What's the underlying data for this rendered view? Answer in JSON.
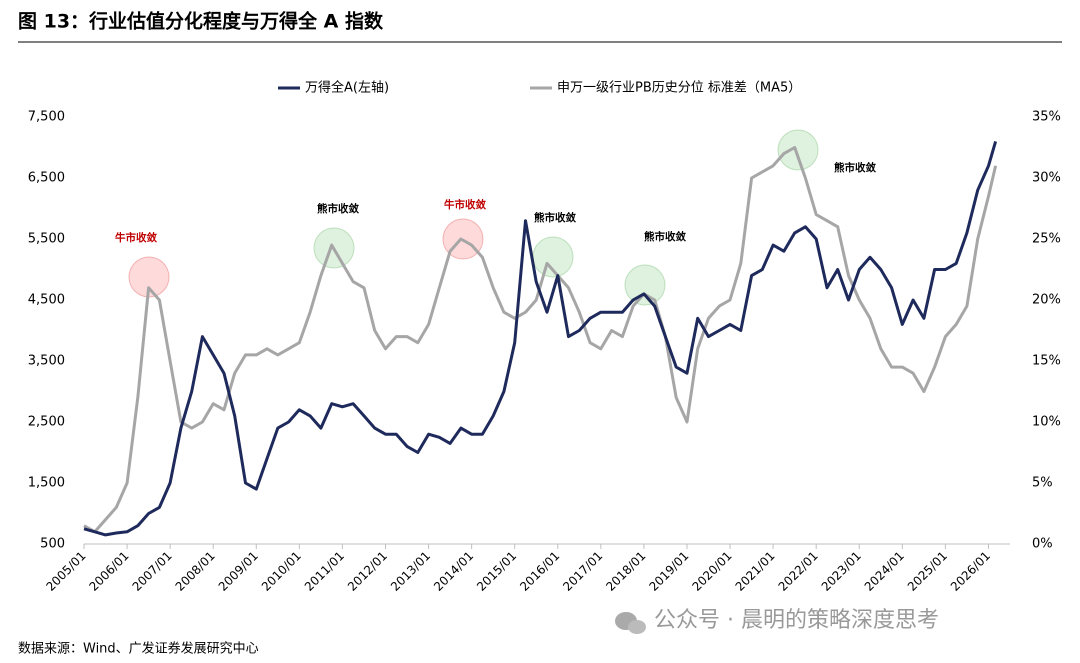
{
  "chart_data": {
    "type": "line",
    "title": "图 13：行业估值分化程度与万得全 A 指数",
    "source": "数据来源：Wind、广发证券发展研究中心",
    "watermark": "公众号 · 晨明的策略深度思考",
    "x": [
      "2005/01",
      "2005/04",
      "2005/07",
      "2005/10",
      "2006/01",
      "2006/04",
      "2006/07",
      "2006/10",
      "2007/01",
      "2007/04",
      "2007/07",
      "2007/10",
      "2008/01",
      "2008/04",
      "2008/07",
      "2008/10",
      "2009/01",
      "2009/04",
      "2009/07",
      "2009/10",
      "2010/01",
      "2010/04",
      "2010/07",
      "2010/10",
      "2011/01",
      "2011/04",
      "2011/07",
      "2011/10",
      "2012/01",
      "2012/04",
      "2012/07",
      "2012/10",
      "2013/01",
      "2013/04",
      "2013/07",
      "2013/10",
      "2014/01",
      "2014/04",
      "2014/07",
      "2014/10",
      "2015/01",
      "2015/04",
      "2015/07",
      "2015/10",
      "2016/01",
      "2016/04",
      "2016/07",
      "2016/10",
      "2017/01",
      "2017/04",
      "2017/07",
      "2017/10",
      "2018/01",
      "2018/04",
      "2018/07",
      "2018/10",
      "2019/01",
      "2019/04",
      "2019/07",
      "2019/10",
      "2020/01",
      "2020/04",
      "2020/07",
      "2020/10",
      "2021/01",
      "2021/04",
      "2021/07",
      "2021/10",
      "2022/01",
      "2022/04",
      "2022/07",
      "2022/10",
      "2023/01",
      "2023/04",
      "2023/07",
      "2023/10",
      "2024/01",
      "2024/04",
      "2024/07",
      "2024/10",
      "2025/01",
      "2025/04",
      "2025/07",
      "2025/10",
      "2026/01",
      "2026/03"
    ],
    "series": [
      {
        "name": "万得全A(左轴)",
        "color": "#1f2a5c",
        "axis": "y",
        "values": [
          750,
          700,
          650,
          680,
          700,
          800,
          1000,
          1100,
          1500,
          2400,
          3000,
          3900,
          3600,
          3300,
          2600,
          1500,
          1400,
          1900,
          2400,
          2500,
          2700,
          2600,
          2400,
          2800,
          2750,
          2800,
          2600,
          2400,
          2300,
          2300,
          2100,
          2000,
          2300,
          2250,
          2150,
          2400,
          2300,
          2300,
          2600,
          3000,
          3800,
          5800,
          4800,
          4300,
          4900,
          3900,
          4000,
          4200,
          4300,
          4300,
          4300,
          4500,
          4600,
          4400,
          3900,
          3400,
          3300,
          4200,
          3900,
          4000,
          4100,
          4000,
          4900,
          5000,
          5400,
          5300,
          5600,
          5700,
          5500,
          4700,
          5000,
          4500,
          5000,
          5200,
          5000,
          4700,
          4100,
          4500,
          4200,
          5000,
          5000,
          5100,
          5600,
          6300,
          6700,
          7100
        ]
      },
      {
        "name": "申万一级行业PB历史分位 标准差（MA5）",
        "color": "#a6a6a6",
        "axis": "y2",
        "values": [
          1.5,
          1,
          2,
          3,
          5,
          12,
          21,
          20,
          15,
          10,
          9.5,
          10,
          11.5,
          11,
          14,
          15.5,
          15.5,
          16,
          15.5,
          16,
          16.5,
          19,
          22,
          24.5,
          23,
          21.5,
          21,
          17.5,
          16,
          17,
          17,
          16.5,
          18,
          21,
          24,
          25,
          24.5,
          23.5,
          21,
          19,
          18.5,
          19,
          20,
          23,
          22,
          21,
          19,
          16.5,
          16,
          17.5,
          17,
          19.5,
          20.5,
          20,
          17,
          12,
          10,
          16,
          18.5,
          19.5,
          20,
          23,
          30,
          30.5,
          31,
          32,
          32.5,
          30,
          27,
          26.5,
          26,
          22,
          20,
          18.5,
          16,
          14.5,
          14.5,
          14,
          12.5,
          14.5,
          17,
          18,
          19.5,
          25,
          28.5,
          31
        ]
      }
    ],
    "xlim": [
      "2005/01",
      "2026/07"
    ],
    "xticks": [
      "2005/01",
      "2006/01",
      "2007/01",
      "2008/01",
      "2009/01",
      "2010/01",
      "2011/01",
      "2012/01",
      "2013/01",
      "2014/01",
      "2015/01",
      "2016/01",
      "2017/01",
      "2018/01",
      "2019/01",
      "2020/01",
      "2021/01",
      "2022/01",
      "2023/01",
      "2024/01",
      "2025/01",
      "2026/01"
    ],
    "ylim": [
      500,
      7500
    ],
    "yticks": [
      500,
      {
        "value": 1500,
        "label": "1,500"
      },
      {
        "value": 2500,
        "label": "2,500"
      },
      {
        "value": 3500,
        "label": "3,500"
      },
      {
        "value": 4500,
        "label": "4,500"
      },
      {
        "value": 5500,
        "label": "5,500"
      },
      {
        "value": 6500,
        "label": "6,500"
      },
      {
        "value": 7500,
        "label": "7,500"
      }
    ],
    "y2lim": [
      0,
      35
    ],
    "y2ticks": [
      {
        "value": 0,
        "label": "0%"
      },
      {
        "value": 5,
        "label": "5%"
      },
      {
        "value": 10,
        "label": "10%"
      },
      {
        "value": 15,
        "label": "15%"
      },
      {
        "value": 20,
        "label": "20%"
      },
      {
        "value": 25,
        "label": "25%"
      },
      {
        "value": 30,
        "label": "30%"
      },
      {
        "value": 35,
        "label": "35%"
      }
    ],
    "annotations": [
      {
        "text": "牛市收敛",
        "color": "#c00000"
      },
      {
        "text": "熊市收敛",
        "color": "#000000"
      },
      {
        "text": "牛市收敛",
        "color": "#c00000"
      },
      {
        "text": "熊市收敛",
        "color": "#000000"
      },
      {
        "text": "熊市收敛",
        "color": "#000000"
      },
      {
        "text": "熊市收敛",
        "color": "#000000"
      }
    ]
  }
}
